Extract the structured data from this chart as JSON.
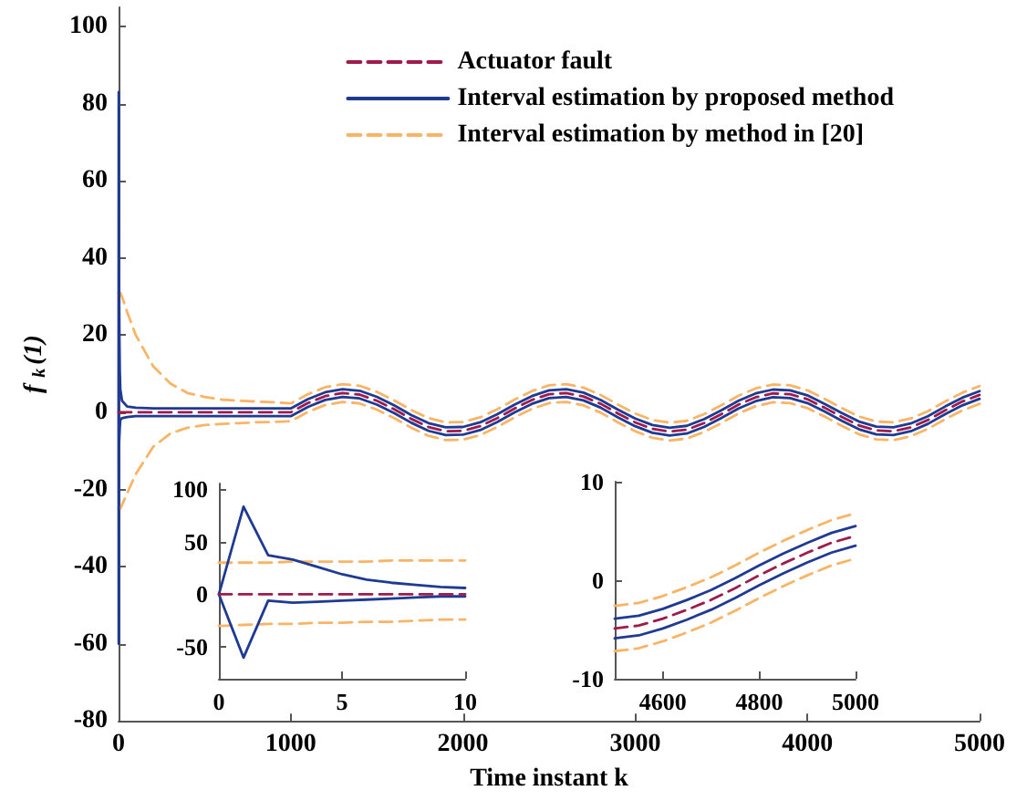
{
  "chart_data": [
    {
      "type": "line",
      "xlabel": "Time instant k",
      "ylabel": "f$_{k}$(1)",
      "xlim": [
        0,
        5000
      ],
      "xticks": [
        0,
        1000,
        2000,
        3000,
        4000,
        5000
      ],
      "ylim": [
        -80,
        105
      ],
      "yticks": [
        -80,
        -60,
        -40,
        -20,
        0,
        20,
        40,
        60,
        80,
        100
      ],
      "legend": "top right",
      "grid": false,
      "x": [
        0,
        1,
        2,
        3,
        5,
        7,
        10,
        20,
        50,
        100,
        200,
        300,
        400,
        500,
        600,
        700,
        800,
        900,
        1000,
        1100,
        1200,
        1300,
        1400,
        1500,
        1600,
        1700,
        1800,
        1900,
        2000,
        2100,
        2200,
        2300,
        2400,
        2500,
        2600,
        2700,
        2800,
        2900,
        3000,
        3100,
        3200,
        3300,
        3400,
        3500,
        3600,
        3700,
        3800,
        3900,
        4000,
        4100,
        4200,
        4300,
        4400,
        4500,
        4600,
        4700,
        4800,
        4900,
        5000
      ],
      "series": [
        {
          "name": "Interval estimation by method in [20]",
          "color": "#f9b465",
          "line_style": "dashed",
          "x": [
            0,
            1,
            2,
            3,
            5,
            7,
            10,
            20,
            50,
            100,
            200,
            300,
            400,
            500,
            600,
            700,
            800,
            900,
            1000,
            1100,
            1200,
            1300,
            1400,
            1500,
            1600,
            1700,
            1800,
            1900,
            2000,
            2100,
            2200,
            2300,
            2400,
            2500,
            2600,
            2700,
            2800,
            2900,
            3000,
            3100,
            3200,
            3300,
            3400,
            3500,
            3600,
            3700,
            3800,
            3900,
            4000,
            4100,
            4200,
            4300,
            4400,
            4500,
            4600,
            4700,
            4800,
            4900,
            5000,
            null,
            0,
            1,
            2,
            3,
            5,
            7,
            10,
            20,
            50,
            100,
            200,
            300,
            400,
            500,
            600,
            700,
            800,
            900,
            1000,
            1100,
            1200,
            1300,
            1400,
            1500,
            1600,
            1700,
            1800,
            1900,
            2000,
            2100,
            2200,
            2300,
            2400,
            2500,
            2600,
            2700,
            2800,
            2900,
            3000,
            3100,
            3200,
            3300,
            3400,
            3500,
            3600,
            3700,
            3800,
            3900,
            4000,
            4100,
            4200,
            4300,
            4400,
            4500,
            4600,
            4700,
            4800,
            4900,
            5000
          ],
          "values": [
            31,
            31,
            31,
            31,
            31,
            31,
            31,
            30,
            26,
            20,
            12,
            7.5,
            5,
            4,
            3.3,
            3,
            2.8,
            2.6,
            2.3,
            4.7,
            6.5,
            7.3,
            6.9,
            5.3,
            3.1,
            0.6,
            -1.5,
            -2.6,
            -2.5,
            -1.3,
            0.8,
            3.3,
            5.5,
            7,
            7.3,
            6.4,
            4.5,
            2,
            -0.3,
            -2,
            -2.7,
            -2.2,
            -0.5,
            1.8,
            4.3,
            6.2,
            7.2,
            7,
            5.7,
            3.5,
            1.1,
            -1.1,
            -2.4,
            -2.6,
            -1.6,
            0.3,
            2.8,
            5.1,
            6.8,
            null,
            -25,
            -25,
            -25,
            -25,
            -25,
            -25,
            -25,
            -24,
            -21,
            -16,
            -9,
            -5.5,
            -4,
            -3.3,
            -3,
            -2.8,
            -2.6,
            -2.5,
            -2.3,
            0.1,
            1.9,
            2.7,
            2.3,
            0.7,
            -1.5,
            -4,
            -6.1,
            -7.2,
            -7.1,
            -5.9,
            -3.8,
            -1.3,
            0.9,
            2.4,
            2.7,
            1.8,
            -0.1,
            -2.6,
            -4.9,
            -6.6,
            -7.3,
            -6.8,
            -5.1,
            -2.8,
            -0.3,
            1.6,
            2.6,
            2.4,
            1.1,
            -1.1,
            -3.5,
            -5.7,
            -7,
            -7.2,
            -6.2,
            -4.3,
            -1.8,
            0.5,
            2.2
          ]
        },
        {
          "name": "Interval estimation by proposed method",
          "color": "#1f3a93",
          "line_style": "solid",
          "x": [
            0,
            1,
            2,
            3,
            5,
            7,
            10,
            20,
            50,
            100,
            200,
            300,
            400,
            500,
            600,
            700,
            800,
            900,
            1000,
            1100,
            1200,
            1300,
            1400,
            1500,
            1600,
            1700,
            1800,
            1900,
            2000,
            2100,
            2200,
            2300,
            2400,
            2500,
            2600,
            2700,
            2800,
            2900,
            3000,
            3100,
            3200,
            3300,
            3400,
            3500,
            3600,
            3700,
            3800,
            3900,
            4000,
            4100,
            4200,
            4300,
            4400,
            4500,
            4600,
            4700,
            4800,
            4900,
            5000,
            null,
            0,
            1,
            2,
            3,
            5,
            7,
            10,
            20,
            50,
            100,
            200,
            300,
            400,
            500,
            600,
            700,
            800,
            900,
            1000,
            1100,
            1200,
            1300,
            1400,
            1500,
            1600,
            1700,
            1800,
            1900,
            2000,
            2100,
            2200,
            2300,
            2400,
            2500,
            2600,
            2700,
            2800,
            2900,
            3000,
            3100,
            3200,
            3300,
            3400,
            3500,
            3600,
            3700,
            3800,
            3900,
            4000,
            4100,
            4200,
            4300,
            4400,
            4500,
            4600,
            4700,
            4800,
            4900,
            5000
          ],
          "values": [
            0,
            83,
            37,
            33,
            19,
            11,
            6,
            3,
            1.5,
            1.2,
            1,
            1,
            1,
            1,
            1,
            1,
            1,
            1,
            1,
            3.4,
            5.2,
            6,
            5.6,
            4,
            1.8,
            -0.7,
            -2.8,
            -3.9,
            -3.8,
            -2.6,
            -0.5,
            2,
            4.2,
            5.7,
            6,
            5.1,
            3.2,
            0.7,
            -1.6,
            -3.3,
            -4,
            -3.5,
            -1.8,
            0.5,
            3,
            4.9,
            5.9,
            5.7,
            4.4,
            2.2,
            -0.2,
            -2.4,
            -3.7,
            -3.9,
            -2.9,
            -1,
            1.5,
            3.8,
            5.5,
            null,
            0,
            -60,
            -6,
            -8,
            -6,
            -4,
            -2,
            -1.5,
            -1.2,
            -1,
            -1,
            -1,
            -1,
            -1,
            -1,
            -1,
            -1,
            -1,
            -1,
            1.4,
            3.2,
            4,
            3.6,
            2,
            -0.2,
            -2.7,
            -4.8,
            -5.9,
            -5.8,
            -4.6,
            -2.5,
            0,
            2.2,
            3.7,
            4,
            3.1,
            1.2,
            -1.3,
            -3.6,
            -5.3,
            -6,
            -5.5,
            -3.8,
            -1.5,
            1,
            2.9,
            3.9,
            3.7,
            2.4,
            0.2,
            -2.2,
            -4.4,
            -5.7,
            -5.9,
            -4.9,
            -3,
            -0.5,
            1.8,
            3.5
          ]
        },
        {
          "name": "Actuator fault",
          "color": "#9e1b4b",
          "line_style": "dashed",
          "values": [
            0,
            0,
            0,
            0,
            0,
            0,
            0,
            0,
            0,
            0,
            0,
            0,
            0,
            0,
            0,
            0,
            0,
            0,
            0,
            2.4,
            4.2,
            5,
            4.6,
            3,
            0.8,
            -1.7,
            -3.8,
            -4.9,
            -4.8,
            -3.6,
            -1.5,
            1,
            3.2,
            4.7,
            5,
            4.1,
            2.2,
            -0.3,
            -2.6,
            -4.3,
            -5,
            -4.5,
            -2.8,
            -0.5,
            2,
            3.9,
            4.9,
            4.7,
            3.4,
            1.2,
            -1.2,
            -3.4,
            -4.7,
            -4.9,
            -3.9,
            -2,
            0.5,
            2.8,
            4.5
          ]
        }
      ]
    },
    {
      "type": "line",
      "xlim": [
        0,
        10
      ],
      "xticks": [
        0,
        5,
        10
      ],
      "ylim": [
        -80,
        105
      ],
      "yticks": [
        -50,
        0,
        50,
        100
      ],
      "grid": false,
      "x": [
        0,
        1,
        2,
        3,
        4,
        5,
        6,
        7,
        8,
        9,
        10
      ],
      "series": [
        {
          "color": "#f9b465",
          "line_style": "dashed",
          "x": [
            0,
            1,
            2,
            3,
            4,
            5,
            6,
            7,
            8,
            9,
            10,
            null,
            0,
            1,
            2,
            3,
            4,
            5,
            6,
            7,
            8,
            9,
            10
          ],
          "values": [
            30,
            30,
            30,
            31,
            31,
            31,
            31,
            32,
            32,
            32,
            32,
            null,
            -30,
            -29,
            -28,
            -28,
            -27,
            -27,
            -26,
            -26,
            -25,
            -24,
            -24
          ]
        },
        {
          "color": "#1f3a93",
          "line_style": "solid",
          "x": [
            0,
            1,
            2,
            3,
            4,
            5,
            6,
            7,
            8,
            9,
            10,
            null,
            0,
            1,
            2,
            3,
            4,
            5,
            6,
            7,
            8,
            9,
            10
          ],
          "values": [
            0,
            83,
            37,
            33,
            26,
            19,
            14,
            11,
            9,
            7,
            6,
            null,
            0,
            -60,
            -6,
            -8,
            -7,
            -6,
            -5,
            -4,
            -3,
            -2,
            -2
          ]
        },
        {
          "color": "#9e1b4b",
          "line_style": "dashed",
          "values": [
            0,
            0,
            0,
            0,
            0,
            0,
            0,
            0,
            0,
            0,
            0
          ]
        }
      ]
    },
    {
      "type": "line",
      "xlim": [
        4500,
        5000
      ],
      "xticks": [
        4600,
        4800,
        5000
      ],
      "ylim": [
        -10,
        10
      ],
      "yticks": [
        -10,
        0,
        10
      ],
      "grid": false,
      "x": [
        4500,
        4550,
        4600,
        4650,
        4700,
        4750,
        4800,
        4850,
        4900,
        4950,
        5000
      ],
      "series": [
        {
          "color": "#f9b465",
          "line_style": "dashed",
          "x": [
            4500,
            4550,
            4600,
            4650,
            4700,
            4750,
            4800,
            4850,
            4900,
            4950,
            5000,
            null,
            4500,
            4550,
            4600,
            4650,
            4700,
            4750,
            4800,
            4850,
            4900,
            4950,
            5000
          ],
          "values": [
            -2.6,
            -2.3,
            -1.6,
            -0.7,
            0.3,
            1.5,
            2.8,
            4,
            5.1,
            6.1,
            6.8,
            null,
            -7.2,
            -6.9,
            -6.2,
            -5.3,
            -4.3,
            -3.1,
            -1.8,
            -0.6,
            0.5,
            1.5,
            2.2
          ]
        },
        {
          "color": "#1f3a93",
          "line_style": "solid",
          "x": [
            4500,
            4550,
            4600,
            4650,
            4700,
            4750,
            4800,
            4850,
            4900,
            4950,
            5000,
            null,
            4500,
            4550,
            4600,
            4650,
            4700,
            4750,
            4800,
            4850,
            4900,
            4950,
            5000
          ],
          "values": [
            -3.9,
            -3.6,
            -2.9,
            -2,
            -1,
            0.2,
            1.5,
            2.7,
            3.8,
            4.8,
            5.5,
            null,
            -5.9,
            -5.6,
            -4.9,
            -4,
            -3,
            -1.8,
            -0.5,
            0.7,
            1.8,
            2.8,
            3.5
          ]
        },
        {
          "color": "#9e1b4b",
          "line_style": "dashed",
          "values": [
            -4.9,
            -4.6,
            -3.9,
            -3,
            -2,
            -0.8,
            0.5,
            1.7,
            2.8,
            3.8,
            4.5
          ]
        }
      ]
    }
  ]
}
